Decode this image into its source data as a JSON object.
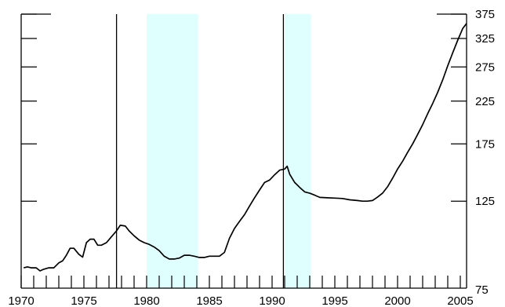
{
  "chart_data": {
    "type": "line",
    "title": "",
    "xlabel": "",
    "ylabel": "",
    "xlim": [
      1970,
      2005.5
    ],
    "ylim": [
      75,
      375
    ],
    "y_scale": "log",
    "x_ticks": [
      1970,
      1975,
      1980,
      1985,
      1990,
      1995,
      2000,
      2005
    ],
    "y_ticks": [
      75,
      125,
      175,
      225,
      275,
      325,
      375
    ],
    "y_axis_side": "right",
    "grid": false,
    "colors": {
      "line": "#000000",
      "shade": "#dfffff",
      "axis": "#000000"
    },
    "shaded_periods": [
      {
        "start": 1980.0,
        "end": 1984.1
      },
      {
        "start": 1991.0,
        "end": 1993.1
      }
    ],
    "vertical_lines": [
      1977.6,
      1990.9
    ],
    "series": [
      {
        "values": [
          [
            1970.2,
            84.5
          ],
          [
            1970.5,
            85.0
          ],
          [
            1970.8,
            84.5
          ],
          [
            1971.2,
            84.5
          ],
          [
            1971.5,
            83.0
          ],
          [
            1971.8,
            83.8
          ],
          [
            1972.2,
            84.5
          ],
          [
            1972.6,
            84.5
          ],
          [
            1973.0,
            87.0
          ],
          [
            1973.3,
            88.0
          ],
          [
            1973.6,
            91.0
          ],
          [
            1973.9,
            94.8
          ],
          [
            1974.2,
            94.8
          ],
          [
            1974.6,
            91.5
          ],
          [
            1974.9,
            90.0
          ],
          [
            1975.2,
            98.0
          ],
          [
            1975.5,
            100.0
          ],
          [
            1975.8,
            100.0
          ],
          [
            1976.1,
            96.5
          ],
          [
            1976.4,
            96.5
          ],
          [
            1976.8,
            98.0
          ],
          [
            1977.2,
            101.5
          ],
          [
            1977.6,
            105.0
          ],
          [
            1977.9,
            108.5
          ],
          [
            1978.3,
            108.0
          ],
          [
            1978.6,
            105.0
          ],
          [
            1979.0,
            102.0
          ],
          [
            1979.4,
            99.5
          ],
          [
            1979.8,
            98.0
          ],
          [
            1980.2,
            97.0
          ],
          [
            1980.6,
            95.5
          ],
          [
            1981.0,
            93.5
          ],
          [
            1981.4,
            90.5
          ],
          [
            1981.8,
            89.0
          ],
          [
            1982.2,
            89.0
          ],
          [
            1982.6,
            89.5
          ],
          [
            1983.0,
            91.0
          ],
          [
            1983.4,
            91.0
          ],
          [
            1983.8,
            90.5
          ],
          [
            1984.2,
            89.8
          ],
          [
            1984.6,
            89.8
          ],
          [
            1985.0,
            90.5
          ],
          [
            1985.4,
            90.5
          ],
          [
            1985.8,
            90.5
          ],
          [
            1986.2,
            92.5
          ],
          [
            1986.6,
            100.5
          ],
          [
            1987.0,
            106.5
          ],
          [
            1987.4,
            111.0
          ],
          [
            1987.8,
            115.5
          ],
          [
            1988.2,
            121.5
          ],
          [
            1988.6,
            127.5
          ],
          [
            1989.0,
            133.5
          ],
          [
            1989.4,
            139.5
          ],
          [
            1989.8,
            141.5
          ],
          [
            1990.2,
            146.0
          ],
          [
            1990.6,
            150.0
          ],
          [
            1991.0,
            151.0
          ],
          [
            1991.2,
            153.5
          ],
          [
            1991.4,
            146.5
          ],
          [
            1991.8,
            139.5
          ],
          [
            1992.2,
            135.5
          ],
          [
            1992.6,
            132.0
          ],
          [
            1993.0,
            131.0
          ],
          [
            1993.4,
            129.5
          ],
          [
            1993.8,
            127.8
          ],
          [
            1994.4,
            127.5
          ],
          [
            1995.0,
            127.3
          ],
          [
            1995.6,
            127.0
          ],
          [
            1996.2,
            126.0
          ],
          [
            1996.8,
            125.5
          ],
          [
            1997.2,
            125.0
          ],
          [
            1997.6,
            125.0
          ],
          [
            1998.0,
            125.5
          ],
          [
            1998.4,
            128.0
          ],
          [
            1998.8,
            131.0
          ],
          [
            1999.2,
            136.0
          ],
          [
            1999.6,
            143.0
          ],
          [
            2000.0,
            151.0
          ],
          [
            2000.4,
            158.0
          ],
          [
            2000.8,
            166.5
          ],
          [
            2001.2,
            175.0
          ],
          [
            2001.6,
            185.0
          ],
          [
            2002.0,
            196.0
          ],
          [
            2002.4,
            209.0
          ],
          [
            2002.8,
            222.0
          ],
          [
            2003.2,
            237.0
          ],
          [
            2003.6,
            255.0
          ],
          [
            2004.0,
            277.0
          ],
          [
            2004.4,
            299.0
          ],
          [
            2004.8,
            322.0
          ],
          [
            2005.2,
            345.0
          ],
          [
            2005.5,
            355.0
          ]
        ]
      }
    ]
  }
}
